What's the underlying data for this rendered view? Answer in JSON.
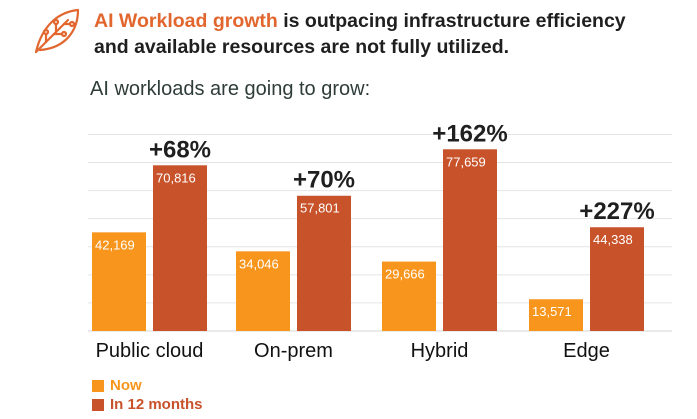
{
  "header": {
    "headline_accent": "AI Workload growth",
    "headline_rest_line1": " is outpacing infrastructure efficiency",
    "headline_line2": "and available resources are not fully utilized.",
    "icon": "leaf-circuit-icon"
  },
  "colors": {
    "accent": "#e2672f",
    "now": "#f7951d",
    "in12": "#c8522a"
  },
  "chart_data": {
    "type": "bar",
    "title": "AI workloads are going to grow:",
    "categories": [
      "Public cloud",
      "On-prem",
      "Hybrid",
      "Edge"
    ],
    "series": [
      {
        "name": "Now",
        "values": [
          42169,
          34046,
          29666,
          13571
        ],
        "labels": [
          "42,169",
          "34,046",
          "29,666",
          "13,571"
        ]
      },
      {
        "name": "In 12 months",
        "values": [
          70816,
          57801,
          77659,
          44338
        ],
        "labels": [
          "70,816",
          "57,801",
          "77,659",
          "44,338"
        ]
      }
    ],
    "growth_labels": [
      "+68%",
      "+70%",
      "+162%",
      "+227%"
    ],
    "ylim": [
      0,
      100000
    ],
    "grid": true,
    "legend_position": "bottom-left"
  }
}
